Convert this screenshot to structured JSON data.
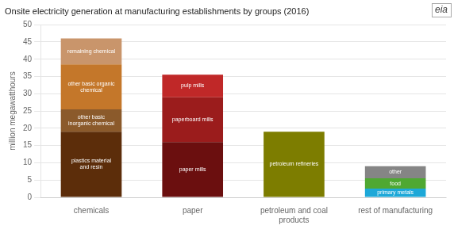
{
  "chart_data": {
    "type": "bar",
    "title": "Onsite electricity generation at manufacturing establishments by groups (2016)",
    "ylabel": "million megawatthours",
    "annotations": [
      "eia"
    ],
    "categories": [
      "chemicals",
      "paper",
      "petroleum and coal\nproducts",
      "rest of manufacturing"
    ],
    "stacked": true,
    "grid": true,
    "ylim": [
      0,
      50
    ],
    "yticks": [
      0,
      5,
      10,
      15,
      20,
      25,
      30,
      35,
      40,
      45,
      50
    ],
    "series": [
      {
        "name": "plastics material\nand resin",
        "values": [
          19.0,
          0,
          0,
          0
        ],
        "color": "#5c2d0a"
      },
      {
        "name": "other basic\ninorganic chemical",
        "values": [
          6.5,
          0,
          0,
          0
        ],
        "color": "#8b5a2b"
      },
      {
        "name": "other basic organic\nchemical",
        "values": [
          13.0,
          0,
          0,
          0
        ],
        "color": "#c4772a"
      },
      {
        "name": "remaining chemical",
        "values": [
          7.5,
          0,
          0,
          0
        ],
        "color": "#c9956b"
      },
      {
        "name": "paper mills",
        "values": [
          0,
          16.0,
          0,
          0
        ],
        "color": "#6b0f0f"
      },
      {
        "name": "paperboard mills",
        "values": [
          0,
          13.0,
          0,
          0
        ],
        "color": "#9b1c1c"
      },
      {
        "name": "pulp mills",
        "values": [
          0,
          6.5,
          0,
          0
        ],
        "color": "#c02828"
      },
      {
        "name": "petroleum refineries",
        "values": [
          0,
          0,
          19.0,
          0
        ],
        "color": "#7d7d00"
      },
      {
        "name": "primary metals",
        "values": [
          0,
          0,
          0,
          2.5
        ],
        "color": "#1da8d8"
      },
      {
        "name": "food",
        "values": [
          0,
          0,
          0,
          3.0
        ],
        "color": "#4fa832"
      },
      {
        "name": "other",
        "values": [
          0,
          0,
          0,
          3.5
        ],
        "color": "#858585"
      }
    ]
  }
}
